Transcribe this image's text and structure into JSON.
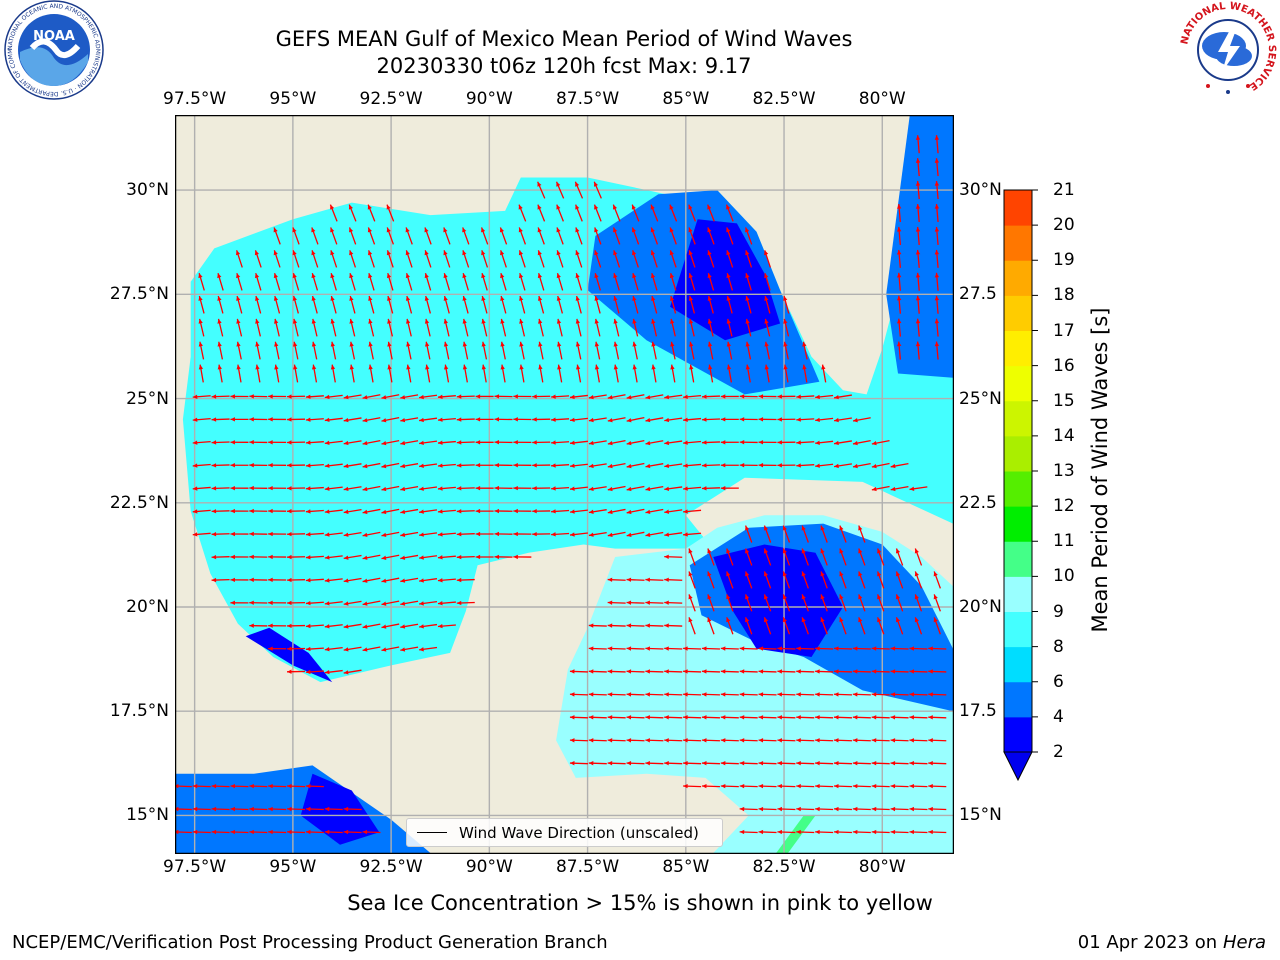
{
  "title": {
    "line1": "GEFS MEAN Gulf of Mexico Mean Period of Wind Waves",
    "line2": "20230330 t06z 120h fcst   Max: 9.17"
  },
  "logos": {
    "noaa_text": "NOAA",
    "noaa_ring": "NATIONAL OCEANIC AND ATMOSPHERIC ADMINISTRATION · U.S. DEPARTMENT OF COMMERCE",
    "nws_ring": "NATIONAL WEATHER SERVICE"
  },
  "map": {
    "lon_range": [
      -98.0,
      -78.2
    ],
    "lat_range": [
      14.1,
      31.8
    ],
    "lon_labels": [
      "97.5°W",
      "95°W",
      "92.5°W",
      "90°W",
      "87.5°W",
      "85°W",
      "82.5°W",
      "80°W"
    ],
    "lon_values": [
      -97.5,
      -95,
      -92.5,
      -90,
      -87.5,
      -85,
      -82.5,
      -80
    ],
    "lat_labels": [
      "30°N",
      "27.5°N",
      "25°N",
      "22.5°N",
      "20°N",
      "17.5°N",
      "15°N"
    ],
    "lat_values": [
      30,
      27.5,
      25,
      22.5,
      20,
      17.5,
      15
    ],
    "lat_labels_right": [
      "30°N",
      "27.5",
      "25°N",
      "22.5",
      "20°N",
      "17.5",
      "15°N"
    ],
    "legend_label": "Wind Wave Direction (unscaled)",
    "arrow_color": "#ff0000",
    "land_color": "#efecdc",
    "grid_color": "#b0b0b0"
  },
  "colorbar": {
    "label": "Mean Period of Wind Waves [s]",
    "levels": [
      "2",
      "4",
      "6",
      "8",
      "9",
      "10",
      "11",
      "12",
      "13",
      "14",
      "15",
      "16",
      "17",
      "18",
      "19",
      "20",
      "21"
    ],
    "colors": [
      "#0000ff",
      "#0077ff",
      "#00ddff",
      "#44ffff",
      "#99ffff",
      "#44ff88",
      "#00ee00",
      "#55ee00",
      "#aaee00",
      "#ccf500",
      "#eeff00",
      "#ffee00",
      "#ffcc00",
      "#ffaa00",
      "#ff7700",
      "#ff4400",
      "#ff0000"
    ],
    "extend_color": "#0000ee"
  },
  "notes": {
    "sea_ice": "Sea Ice Concentration > 15% is shown in pink to yellow",
    "credit": "NCEP/EMC/Verification Post Processing Product Generation Branch",
    "date": "01 Apr 2023 on ",
    "host": "Hera"
  }
}
